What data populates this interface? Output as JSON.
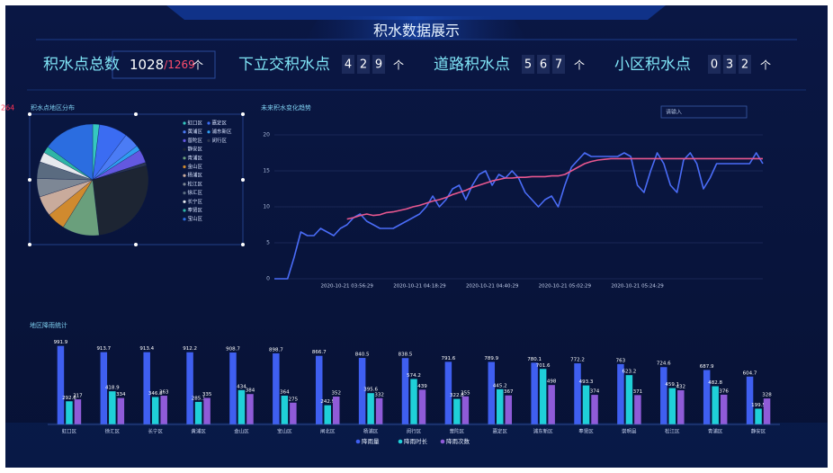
{
  "stray_label": "264",
  "header": {
    "title": "积水数据展示"
  },
  "total_kpi": {
    "label": "积水点总数",
    "value": 1028,
    "separator": "/",
    "total": 1269,
    "unit": "个"
  },
  "digit_kpis": [
    {
      "label": "下立交积水点",
      "digits": [
        "4",
        "2",
        "9"
      ],
      "unit": "个"
    },
    {
      "label": "道路积水点",
      "digits": [
        "5",
        "6",
        "7"
      ],
      "unit": "个"
    },
    {
      "label": "小区积水点",
      "digits": [
        "0",
        "3",
        "2"
      ],
      "unit": "个"
    }
  ],
  "chart_data": [
    {
      "type": "pie",
      "title": "积水点地区分布",
      "categories": [
        "虹口区",
        "嘉定区",
        "黄浦区",
        "浦东新区",
        "普陀区",
        "闵行区",
        "静安区",
        "青浦区",
        "金山区",
        "杨浦区",
        "松江区",
        "徐汇区",
        "长宁区",
        "奉贤区",
        "宝山区"
      ],
      "values": [
        20,
        85,
        45,
        15,
        40,
        10,
        280,
        110,
        55,
        60,
        55,
        50,
        30,
        20,
        153
      ],
      "colors": [
        "#35c8c0",
        "#3b6cf2",
        "#4b7cf5",
        "#2f9ef0",
        "#6358e0",
        "#2a3550",
        "#1d2533",
        "#6a9f7c",
        "#d08a2e",
        "#c9ab9c",
        "#7d8795",
        "#5a6b80",
        "#e6e9ee",
        "#2fb5a5",
        "#2b6de0"
      ]
    },
    {
      "type": "line",
      "title": "未来积水变化趋势",
      "input_placeholder": "请输入",
      "categories": [
        null,
        null,
        null,
        null,
        null,
        null,
        null,
        null,
        null,
        null,
        null,
        "2020-10-21 03:56:29",
        null,
        null,
        null,
        null,
        null,
        null,
        null,
        null,
        null,
        null,
        "2020-10-21 04:18:29",
        null,
        null,
        null,
        null,
        null,
        null,
        null,
        null,
        null,
        null,
        "2020-10-21 04:40:29",
        null,
        null,
        null,
        null,
        null,
        null,
        null,
        null,
        null,
        null,
        "2020-10-21 05:02:29",
        null,
        null,
        null,
        null,
        null,
        null,
        null,
        null,
        null,
        null,
        "2020-10-21 05:24:29",
        null,
        null,
        null,
        null,
        null,
        null,
        null,
        null,
        null,
        null,
        null,
        null,
        null,
        null,
        null,
        null,
        null,
        null,
        null
      ],
      "series": [
        {
          "color": "#4a6cf7",
          "values": [
            0,
            0,
            0,
            3,
            6.5,
            6,
            6,
            7,
            6.5,
            6,
            7,
            7.5,
            8.5,
            9,
            8,
            7.5,
            7,
            7,
            7,
            7.5,
            8,
            8.5,
            9,
            10,
            11.5,
            10,
            11,
            12.5,
            13,
            11,
            13,
            14.5,
            15,
            13,
            14.5,
            14,
            15,
            14,
            12,
            11,
            10,
            11,
            11.5,
            10,
            13,
            15.5,
            16.5,
            17.5,
            17,
            17,
            17,
            17,
            17,
            17.5,
            17,
            13,
            12,
            15,
            17.5,
            16,
            13,
            12,
            16.5,
            17.5,
            16,
            12.5,
            14,
            16,
            16,
            16,
            16,
            16,
            16,
            17.5,
            16
          ]
        },
        {
          "color": "#e8578f",
          "values": [
            null,
            null,
            null,
            null,
            null,
            null,
            null,
            null,
            null,
            null,
            null,
            8.3,
            8.5,
            8.8,
            9,
            8.8,
            8.9,
            9.2,
            9.3,
            9.5,
            9.7,
            10,
            10.2,
            10.5,
            10.8,
            11,
            11.3,
            11.7,
            12,
            12.3,
            12.7,
            13,
            13.3,
            13.6,
            13.8,
            14,
            14,
            14.1,
            14.1,
            14.2,
            14.2,
            14.2,
            14.3,
            14.3,
            14.5,
            15,
            15.5,
            16,
            16.3,
            16.5,
            16.6,
            16.7,
            16.7,
            16.7,
            16.7,
            16.7,
            16.7,
            16.7,
            16.7,
            16.7,
            16.7,
            16.7,
            16.7,
            16.7,
            16.7,
            16.7,
            16.7,
            16.7,
            16.7,
            16.7,
            16.7,
            16.7,
            16.7,
            16.7,
            16.7
          ]
        }
      ],
      "ylim": [
        0,
        20
      ],
      "yticks": [
        0,
        5,
        10,
        15,
        20
      ],
      "grid": true
    },
    {
      "type": "bar",
      "title": "地区降雨统计",
      "categories": [
        "虹口区",
        "徐汇区",
        "长宁区",
        "黄浦区",
        "金山区",
        "宝山区",
        "闸北区",
        "杨浦区",
        "闵行区",
        "普陀区",
        "嘉定区",
        "浦东新区",
        "奉贤区",
        "崇明县",
        "松江区",
        "青浦区",
        "静安区"
      ],
      "series": [
        {
          "name": "降雨量",
          "color": "#3f5ff0",
          "values": [
            991.9,
            913.7,
            913.4,
            912.2,
            908.7,
            898.7,
            866.7,
            840.5,
            838.5,
            791.6,
            789.9,
            780.1,
            772.2,
            763,
            724.6,
            687.9,
            604.7
          ]
        },
        {
          "name": "降雨时长",
          "color": "#1fd0d8",
          "values": [
            292.6,
            418.9,
            346.8,
            285.1,
            434,
            364,
            242.9,
            395.6,
            574.2,
            322.8,
            445.2,
            701.6,
            493.3,
            623.2,
            459.1,
            482.8,
            199.5
          ]
        },
        {
          "name": "降雨次数",
          "color": "#8f5bd8",
          "values": [
            317,
            334,
            363,
            335,
            384,
            275,
            352,
            332,
            439,
            355,
            367,
            498,
            374,
            371,
            432,
            376,
            328
          ]
        }
      ],
      "ylim": [
        0,
        1000
      ]
    }
  ]
}
